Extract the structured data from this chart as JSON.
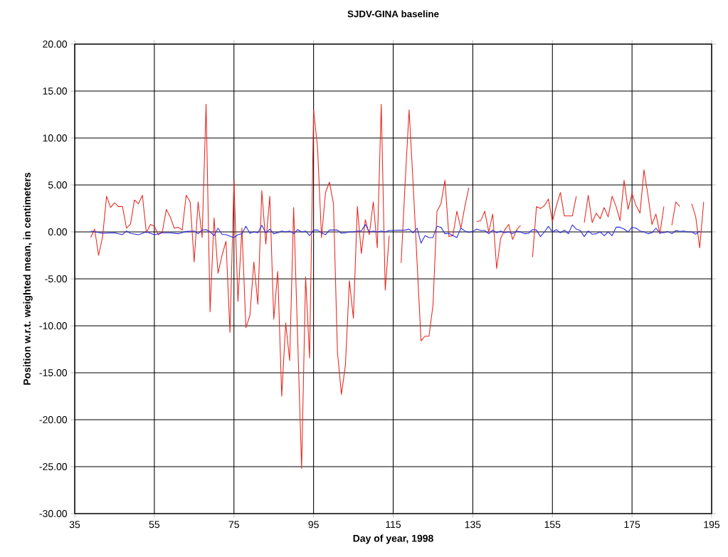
{
  "chart_data": {
    "type": "line",
    "title": "SJDV-GINA baseline",
    "xlabel": "Day of year, 1998",
    "ylabel": "Position w.r.t. weighted mean, in centimeters",
    "xlim": [
      35,
      195
    ],
    "xticks": [
      35,
      55,
      75,
      95,
      115,
      135,
      155,
      175,
      195
    ],
    "ylim": [
      -30,
      20
    ],
    "yticks": [
      {
        "value": -30,
        "label": "-30.00"
      },
      {
        "value": -25,
        "label": "-25.00"
      },
      {
        "value": -20,
        "label": "-20.00"
      },
      {
        "value": -15,
        "label": "-15.00"
      },
      {
        "value": -10,
        "label": "-10.00"
      },
      {
        "value": -5,
        "label": "-5.00"
      },
      {
        "value": 0,
        "label": "0.00"
      },
      {
        "value": 5,
        "label": "5.00"
      },
      {
        "value": 10,
        "label": "10.00"
      },
      {
        "value": 15,
        "label": "15.00"
      },
      {
        "value": 20,
        "label": "20.00"
      }
    ],
    "grid": true,
    "marker": "none",
    "line_style": "solid",
    "series": [
      {
        "color": "#e8281e",
        "x": [
          39,
          40,
          41,
          42,
          43,
          44,
          45,
          46,
          47,
          48,
          49,
          50,
          51,
          52,
          53,
          54,
          55,
          56,
          57,
          58,
          59,
          60,
          61,
          62,
          63,
          64,
          65,
          66,
          67,
          68,
          69,
          70,
          71,
          72,
          73,
          74,
          75,
          76,
          77,
          78,
          79,
          80,
          81,
          82,
          83,
          84,
          85,
          86,
          87,
          88,
          89,
          90,
          92,
          93,
          94,
          95,
          96,
          97,
          98,
          99,
          100,
          101,
          102,
          103,
          104,
          105,
          106,
          107,
          108,
          109,
          110,
          111,
          112,
          113,
          114,
          115,
          116,
          117,
          118,
          119,
          120,
          122,
          123,
          124,
          125,
          126,
          127,
          128,
          129,
          130,
          131,
          132,
          133,
          134,
          135,
          136,
          137,
          138,
          139,
          140,
          141,
          142,
          143,
          144,
          145,
          146,
          147,
          148,
          149,
          150,
          151,
          152,
          153,
          154,
          155,
          156,
          157,
          158,
          159,
          160,
          161,
          162,
          163,
          164,
          165,
          166,
          167,
          168,
          169,
          170,
          171,
          172,
          173,
          174,
          175,
          176,
          177,
          178,
          179,
          180,
          181,
          182,
          183,
          184,
          185,
          186,
          187,
          188,
          189,
          190,
          191,
          192,
          193
        ],
        "values": [
          -0.6,
          0.3,
          -2.5,
          -0.5,
          3.8,
          2.6,
          3.1,
          2.7,
          2.7,
          0.4,
          0.8,
          3.4,
          3.0,
          3.9,
          -0.1,
          0.8,
          0.6,
          -0.3,
          0.0,
          2.4,
          1.6,
          0.4,
          0.5,
          0.2,
          3.9,
          3.2,
          -3.2,
          3.2,
          -0.6,
          13.6,
          -8.5,
          1.5,
          -4.4,
          -2.5,
          -1.0,
          -10.7,
          5.5,
          -7.4,
          0.4,
          -10.2,
          -8.9,
          -3.2,
          -7.7,
          4.4,
          -1.3,
          3.8,
          -9.3,
          -4.2,
          -17.5,
          -9.7,
          -13.7,
          2.6,
          -25.2,
          -4.8,
          -13.4,
          13.0,
          9.0,
          -0.6,
          4.2,
          5.3,
          3.0,
          -12.8,
          -17.3,
          -14.2,
          -5.2,
          -9.2,
          2.7,
          -2.3,
          1.3,
          -0.3,
          3.2,
          -1.7,
          13.6,
          -6.2,
          -0.4,
          null,
          null,
          -3.3,
          5.2,
          13.0,
          5.2,
          -11.6,
          -11.1,
          -11.1,
          -7.8,
          2.2,
          3.0,
          5.5,
          -0.5,
          -0.4,
          2.2,
          0.4,
          2.7,
          4.7,
          null,
          1.1,
          1.2,
          2.2,
          0.0,
          1.9,
          -3.9,
          -0.7,
          0.2,
          0.8,
          -0.8,
          0.2,
          0.7,
          null,
          null,
          -2.7,
          2.7,
          2.5,
          2.8,
          3.5,
          1.1,
          2.8,
          4.2,
          1.7,
          1.7,
          1.7,
          3.8,
          null,
          1.0,
          3.9,
          1.0,
          2.0,
          1.4,
          2.6,
          1.6,
          3.8,
          2.7,
          1.2,
          5.5,
          2.4,
          4.1,
          2.8,
          2.0,
          6.6,
          3.9,
          0.8,
          1.9,
          -0.2,
          2.7,
          null,
          0.7,
          3.2,
          2.7,
          null,
          null,
          3.0,
          1.6,
          -1.7,
          3.2
        ]
      },
      {
        "color": "#2a2ae6",
        "x": [
          39,
          42,
          45,
          47,
          48,
          49,
          51,
          53,
          55,
          57,
          59,
          61,
          63,
          65,
          66,
          67,
          68,
          69,
          70,
          71,
          72,
          73,
          75,
          76,
          77,
          78,
          79,
          80,
          81,
          82,
          83,
          84,
          85,
          86,
          87,
          88,
          89,
          90,
          91,
          92,
          93,
          94,
          95,
          96,
          97,
          98,
          99,
          100,
          101,
          102,
          103,
          104,
          105,
          106,
          107,
          108,
          109,
          110,
          111,
          112,
          113,
          114,
          118,
          119,
          120,
          121,
          122,
          123,
          124,
          125,
          126,
          127,
          128,
          129,
          130,
          131,
          132,
          133,
          134,
          135,
          136,
          137,
          138,
          139,
          140,
          141,
          142,
          143,
          144,
          145,
          146,
          147,
          148,
          149,
          150,
          151,
          152,
          153,
          154,
          155,
          156,
          157,
          158,
          159,
          160,
          161,
          162,
          163,
          164,
          165,
          166,
          167,
          168,
          169,
          170,
          171,
          172,
          173,
          174,
          175,
          176,
          177,
          178,
          179,
          180,
          181,
          182,
          183,
          184,
          185,
          186,
          187,
          188,
          189,
          190,
          191,
          192
        ],
        "values": [
          0.1,
          -0.15,
          -0.1,
          -0.3,
          0.1,
          -0.15,
          -0.3,
          0.0,
          -0.3,
          -0.1,
          -0.1,
          -0.2,
          0.05,
          0.1,
          -0.2,
          0.2,
          0.25,
          0.0,
          -0.4,
          0.4,
          -0.25,
          -0.3,
          -0.6,
          -0.3,
          -0.2,
          0.6,
          -0.15,
          0.0,
          -0.1,
          0.7,
          -0.1,
          0.3,
          -0.2,
          -0.1,
          0.1,
          0.0,
          0.1,
          -0.2,
          0.25,
          0.0,
          0.1,
          -0.4,
          0.2,
          0.2,
          -0.1,
          -0.3,
          0.2,
          0.2,
          0.2,
          -0.15,
          -0.1,
          0.0,
          0.0,
          0.1,
          0.1,
          0.8,
          0.0,
          0.1,
          0.0,
          0.1,
          0.0,
          0.15,
          0.2,
          0.3,
          -0.1,
          0.4,
          -1.2,
          -0.4,
          -0.6,
          -0.6,
          0.6,
          0.5,
          -0.2,
          -0.15,
          -0.4,
          -0.6,
          0.4,
          0.1,
          -0.05,
          0.05,
          0.3,
          0.15,
          0.15,
          -0.2,
          0.2,
          -0.1,
          0.1,
          -0.1,
          0.0,
          -0.2,
          0.1,
          0.0,
          -0.2,
          -0.15,
          0.25,
          0.2,
          -0.5,
          0.0,
          0.6,
          0.0,
          0.25,
          -0.1,
          0.2,
          -0.2,
          0.75,
          0.3,
          0.15,
          -0.5,
          0.1,
          -0.25,
          -0.2,
          0.0,
          -0.4,
          0.0,
          -0.4,
          0.5,
          0.5,
          0.3,
          0.0,
          0.5,
          0.4,
          0.1,
          0.0,
          -0.2,
          -0.1,
          0.4,
          -0.1,
          -0.1,
          0.05,
          -0.2,
          0.15,
          0.05,
          0.1,
          0.0,
          0.0,
          -0.25,
          0.1
        ]
      }
    ]
  }
}
